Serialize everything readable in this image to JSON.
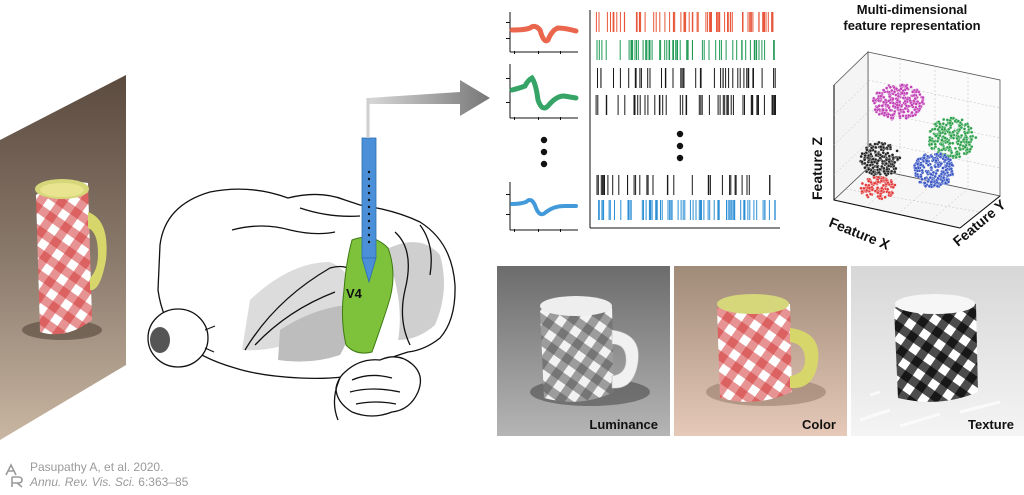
{
  "labels": {
    "area": "V4",
    "feature_title_line1": "Multi-dimensional",
    "feature_title_line2": "feature representation",
    "axis_x": "Feature X",
    "axis_y": "Feature Y",
    "axis_z": "Feature Z"
  },
  "panels": [
    {
      "label": "Luminance"
    },
    {
      "label": "Color"
    },
    {
      "label": "Texture"
    }
  ],
  "citation": {
    "line1": "Pasupathy A, et al. 2020.",
    "journal": "Annu. Rev. Vis. Sci.",
    "volume": " 6:363–85"
  },
  "colors": {
    "unit_red": "#e8573a",
    "unit_green": "#1f9a55",
    "unit_black": "#1a1a1a",
    "unit_blue": "#2d8fd6",
    "v4_green": "#7dc23a",
    "electrode_blue": "#4a8fd8",
    "cluster_magenta": "#c13fb5",
    "cluster_green": "#2ea04b",
    "cluster_black": "#222222",
    "cluster_blue": "#3a57c4",
    "cluster_red": "#e23a3a"
  }
}
